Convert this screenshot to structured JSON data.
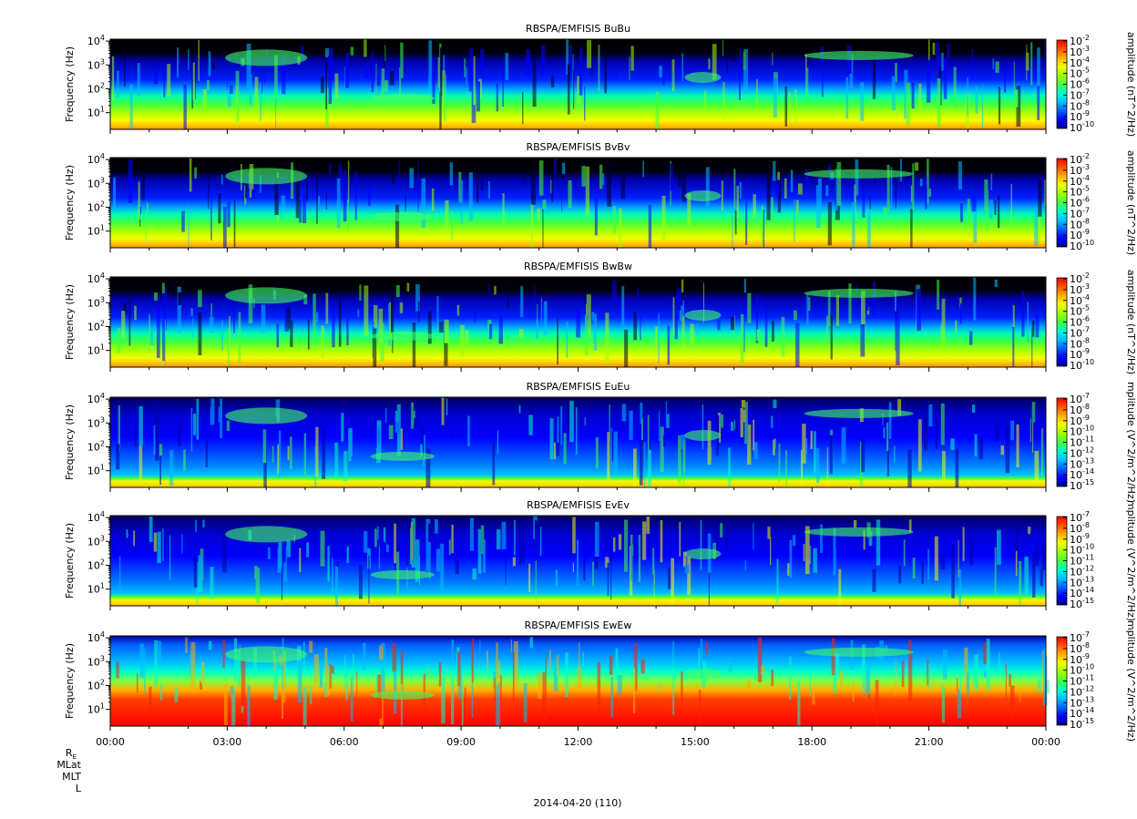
{
  "figure": {
    "date_label": "2014-04-20 (110)",
    "ephemeris_labels": [
      "R",
      "MLat",
      "MLT",
      "L"
    ],
    "ephemeris_re_sub": "E"
  },
  "colorbar_colors": [
    "#00008b",
    "#0000ff",
    "#0060ff",
    "#00c0ff",
    "#00ffc8",
    "#40ff40",
    "#a0ff00",
    "#f0ff00",
    "#ffb000",
    "#ff5000",
    "#ff0000"
  ],
  "chart_data": [
    {
      "type": "heatmap",
      "title": "RBSPA/EMFISIS  BuBu",
      "ylabel": "Frequency (Hz)",
      "yscale": "log",
      "ylim": [
        2,
        12000
      ],
      "y_ticks": [
        "10",
        "10",
        "10",
        "10"
      ],
      "y_tick_exponents": [
        "1",
        "2",
        "3",
        "4"
      ],
      "x_ticks": [
        "00:00",
        "03:00",
        "06:00",
        "09:00",
        "12:00",
        "15:00",
        "18:00",
        "21:00",
        "00:00"
      ],
      "x_hours": [
        0,
        3,
        6,
        9,
        12,
        15,
        18,
        21,
        24
      ],
      "xlim_hours": [
        0,
        24
      ],
      "zlabel": "amplitude (nT^2/Hz)",
      "zscale": "log",
      "z_tick_exponents": [
        "-2",
        "-3",
        "-4",
        "-5",
        "-6",
        "-7",
        "-8",
        "-9",
        "-10"
      ],
      "z_tick_base": "10"
    },
    {
      "type": "heatmap",
      "title": "RBSPA/EMFISIS  BvBv",
      "ylabel": "Frequency (Hz)",
      "yscale": "log",
      "ylim": [
        2,
        12000
      ],
      "y_ticks": [
        "10",
        "10",
        "10",
        "10"
      ],
      "y_tick_exponents": [
        "1",
        "2",
        "3",
        "4"
      ],
      "x_hours": [
        0,
        3,
        6,
        9,
        12,
        15,
        18,
        21,
        24
      ],
      "zlabel": "amplitude (nT^2/Hz)",
      "zscale": "log",
      "z_tick_exponents": [
        "-2",
        "-3",
        "-4",
        "-5",
        "-6",
        "-7",
        "-8",
        "-9",
        "-10"
      ],
      "z_tick_base": "10"
    },
    {
      "type": "heatmap",
      "title": "RBSPA/EMFISIS  BwBw",
      "ylabel": "Frequency (Hz)",
      "yscale": "log",
      "ylim": [
        2,
        12000
      ],
      "y_ticks": [
        "10",
        "10",
        "10",
        "10"
      ],
      "y_tick_exponents": [
        "1",
        "2",
        "3",
        "4"
      ],
      "x_hours": [
        0,
        3,
        6,
        9,
        12,
        15,
        18,
        21,
        24
      ],
      "zlabel": "amplitude (nT^2/Hz)",
      "zscale": "log",
      "z_tick_exponents": [
        "-2",
        "-3",
        "-4",
        "-5",
        "-6",
        "-7",
        "-8",
        "-9",
        "-10"
      ],
      "z_tick_base": "10"
    },
    {
      "type": "heatmap",
      "title": "RBSPA/EMFISIS  EuEu",
      "ylabel": "Frequency (Hz)",
      "yscale": "log",
      "ylim": [
        2,
        12000
      ],
      "y_ticks": [
        "10",
        "10",
        "10",
        "10"
      ],
      "y_tick_exponents": [
        "1",
        "2",
        "3",
        "4"
      ],
      "x_hours": [
        0,
        3,
        6,
        9,
        12,
        15,
        18,
        21,
        24
      ],
      "zlabel": "mplitude (V^2/m^2/Hz)",
      "zscale": "log",
      "z_tick_exponents": [
        "-7",
        "-8",
        "-9",
        "-10",
        "-11",
        "-12",
        "-13",
        "-14",
        "-15"
      ],
      "z_tick_base": "10"
    },
    {
      "type": "heatmap",
      "title": "RBSPA/EMFISIS  EvEv",
      "ylabel": "Frequency (Hz)",
      "yscale": "log",
      "ylim": [
        2,
        12000
      ],
      "y_ticks": [
        "10",
        "10",
        "10",
        "10"
      ],
      "y_tick_exponents": [
        "1",
        "2",
        "3",
        "4"
      ],
      "x_hours": [
        0,
        3,
        6,
        9,
        12,
        15,
        18,
        21,
        24
      ],
      "zlabel": "mplitude (V^2/m^2/Hz)",
      "zscale": "log",
      "z_tick_exponents": [
        "-7",
        "-8",
        "-9",
        "-10",
        "-11",
        "-12",
        "-13",
        "-14",
        "-15"
      ],
      "z_tick_base": "10"
    },
    {
      "type": "heatmap",
      "title": "RBSPA/EMFISIS  EwEw",
      "ylabel": "Frequency (Hz)",
      "yscale": "log",
      "ylim": [
        2,
        12000
      ],
      "y_ticks": [
        "10",
        "10",
        "10",
        "10"
      ],
      "y_tick_exponents": [
        "1",
        "2",
        "3",
        "4"
      ],
      "x_hours": [
        0,
        3,
        6,
        9,
        12,
        15,
        18,
        21,
        24
      ],
      "zlabel": "mplitude (V^2/m^2/Hz)",
      "zscale": "log",
      "z_tick_exponents": [
        "-7",
        "-8",
        "-9",
        "-10",
        "-11",
        "-12",
        "-13",
        "-14",
        "-15"
      ],
      "z_tick_base": "10"
    }
  ]
}
